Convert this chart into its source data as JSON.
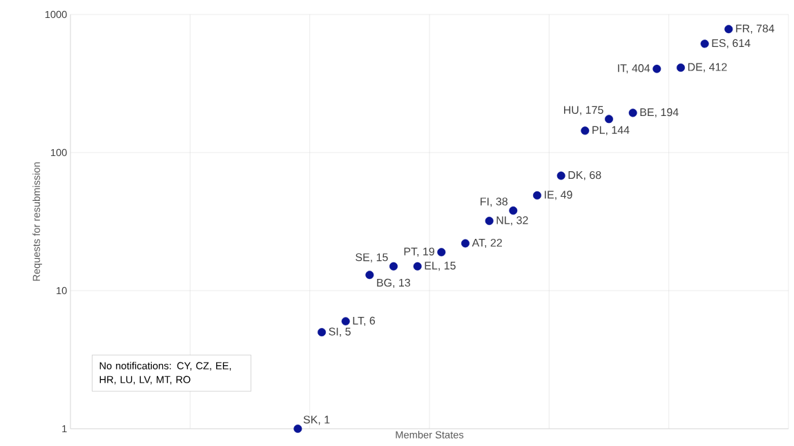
{
  "chart_data": {
    "type": "scatter",
    "xlabel": "Member States",
    "ylabel": "Requests for resubmission",
    "categories": [
      null,
      null,
      null,
      null,
      null,
      null,
      null,
      null,
      null,
      null,
      null,
      null,
      null,
      null,
      null,
      null,
      null,
      null,
      null,
      null,
      null,
      null,
      null,
      null,
      null,
      null,
      null,
      null,
      null,
      null
    ],
    "values": [
      null,
      null,
      null,
      null,
      null,
      null,
      null,
      null,
      null,
      1,
      5,
      6,
      13,
      15,
      15,
      19,
      22,
      32,
      38,
      49,
      68,
      144,
      175,
      194,
      404,
      412,
      614,
      784,
      null,
      null
    ],
    "value_labels": [
      null,
      null,
      null,
      null,
      null,
      null,
      null,
      null,
      null,
      "SK, 1",
      "SI, 5",
      "LT, 6",
      "BG, 13",
      "SE, 15",
      "EL, 15",
      "PT, 19",
      "AT, 22",
      "NL, 32",
      "FI, 38",
      "IE, 49",
      "DK, 68",
      "PL, 144",
      "HU, 175",
      "BE, 194",
      "IT, 404",
      "DE, 412",
      "ES, 614",
      "FR, 784",
      null,
      null
    ],
    "color": "#0a1496",
    "marker": "circle",
    "log": "y",
    "grid": true,
    "tick_labels": "y",
    "ylim": [
      1,
      1000
    ],
    "yticks": [
      1,
      10,
      100,
      1000
    ],
    "annotations": [
      "No notifications: CY, CZ, EE, HR, LU, LV, MT, RO"
    ]
  }
}
